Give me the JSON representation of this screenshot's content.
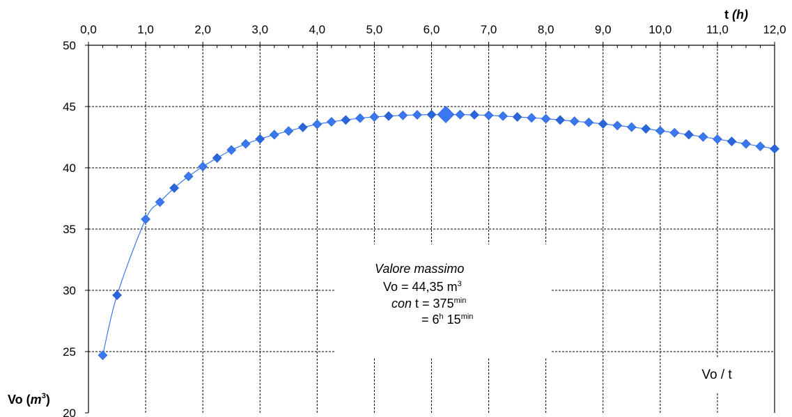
{
  "chart_data": {
    "type": "line",
    "xlabel": "t (h)",
    "ylabel": "Vo (m3)",
    "xlim": [
      0,
      12
    ],
    "ylim": [
      20,
      50
    ],
    "x_ticks": [
      "0,0",
      "1,0",
      "2,0",
      "3,0",
      "4,0",
      "5,0",
      "6,0",
      "7,0",
      "8,0",
      "9,0",
      "10,0",
      "11,0",
      "12,0"
    ],
    "y_ticks": [
      "20",
      "25",
      "30",
      "35",
      "40",
      "45",
      "50"
    ],
    "x_axis_position": "top",
    "grid": true,
    "grid_style": "dashed",
    "marker": "diamond",
    "series": [
      {
        "name": "Vo / t",
        "color": "#3b78f0",
        "x": [
          0.25,
          0.5,
          1.0,
          1.25,
          1.5,
          1.75,
          2.0,
          2.25,
          2.5,
          2.75,
          3.0,
          3.25,
          3.5,
          3.75,
          4.0,
          4.25,
          4.5,
          4.75,
          5.0,
          5.25,
          5.5,
          5.75,
          6.0,
          6.25,
          6.5,
          6.75,
          7.0,
          7.25,
          7.5,
          7.75,
          8.0,
          8.25,
          8.5,
          8.75,
          9.0,
          9.25,
          9.5,
          9.75,
          10.0,
          10.25,
          10.5,
          10.75,
          11.0,
          11.25,
          11.5,
          11.75,
          12.0
        ],
        "y": [
          24.7,
          29.6,
          35.8,
          37.2,
          38.35,
          39.3,
          40.1,
          40.8,
          41.45,
          41.95,
          42.35,
          42.7,
          43.0,
          43.3,
          43.55,
          43.75,
          43.9,
          44.05,
          44.15,
          44.22,
          44.28,
          44.32,
          44.34,
          44.35,
          44.34,
          44.32,
          44.28,
          44.22,
          44.15,
          44.08,
          44.0,
          43.9,
          43.8,
          43.7,
          43.58,
          43.45,
          43.32,
          43.18,
          43.02,
          42.86,
          42.7,
          42.52,
          42.34,
          42.15,
          41.95,
          41.75,
          41.55
        ]
      }
    ],
    "highlight": {
      "x": 6.25,
      "y": 44.35
    }
  },
  "annotation": {
    "title": "Valore massimo",
    "line1_prefix": "Vo =  44,35 m",
    "line1_sup": "3",
    "line2_prefix_italic": "con",
    "line2_text": " t = 375",
    "line2_sup": "min",
    "line3_eq": "= 6",
    "line3_sup1": "h",
    "line3_mid": " 15",
    "line3_sup2": "min"
  },
  "legend": {
    "label": "Vo / t"
  },
  "axis_titles": {
    "x_main": "t ",
    "x_unit": "(h)",
    "y_main": "Vo (",
    "y_unit": "m",
    "y_sup": "3",
    "y_close": ")"
  }
}
